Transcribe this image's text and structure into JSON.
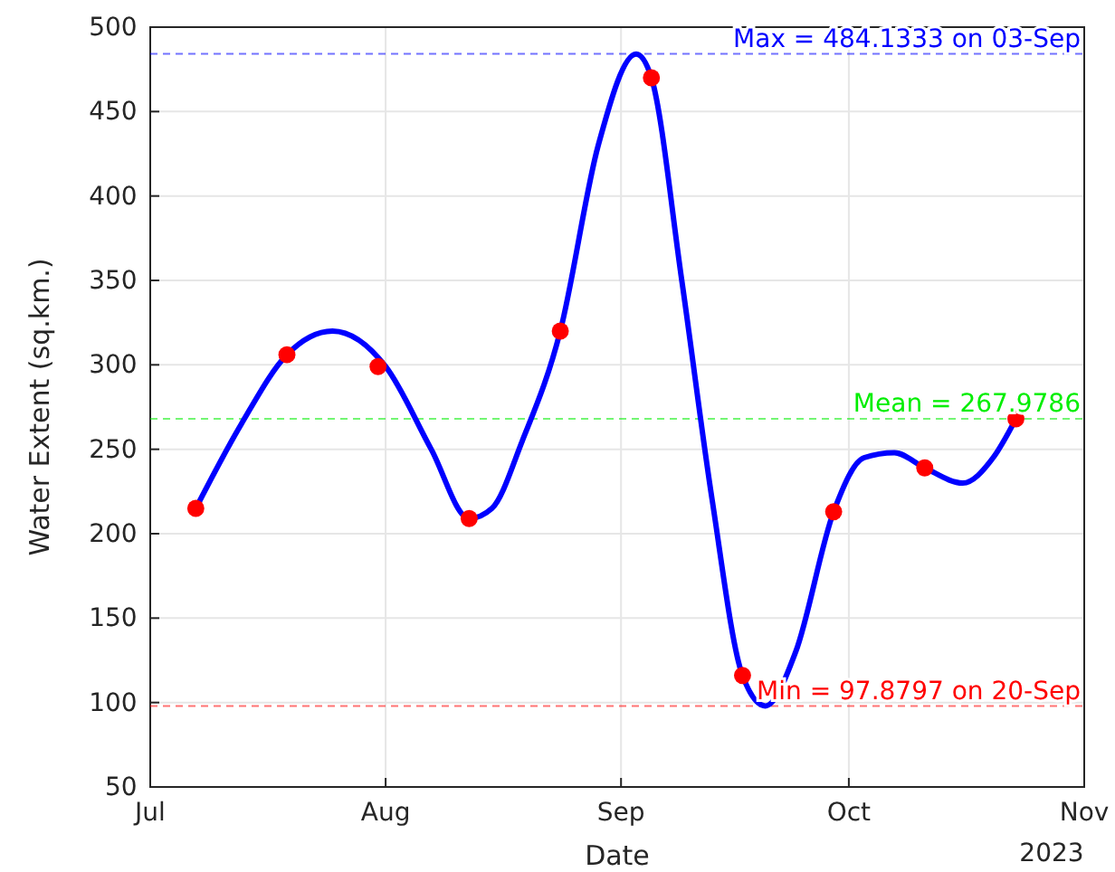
{
  "chart_data": {
    "type": "line",
    "xlabel": "Date",
    "ylabel": "Water Extent (sq.km.)",
    "xlim": [
      "2023-07-01",
      "2023-11-01"
    ],
    "xticks": [
      {
        "value": "2023-07-01",
        "label": "Jul"
      },
      {
        "value": "2023-08-01",
        "label": "Aug"
      },
      {
        "value": "2023-09-01",
        "label": "Sep"
      },
      {
        "value": "2023-10-01",
        "label": "Oct"
      },
      {
        "value": "2023-11-01",
        "label": "Nov"
      }
    ],
    "ylim": [
      50,
      500
    ],
    "yticks": [
      50,
      100,
      150,
      200,
      250,
      300,
      350,
      400,
      450,
      500
    ],
    "grid": true,
    "series": [
      {
        "color": "#0000ff",
        "marker": "none",
        "line_style": "solid",
        "x": [
          "2023-07-07",
          "2023-07-13",
          "2023-07-19",
          "2023-07-25",
          "2023-08-01",
          "2023-08-07",
          "2023-08-12",
          "2023-08-15",
          "2023-08-19",
          "2023-08-24",
          "2023-08-29",
          "2023-09-03",
          "2023-09-05",
          "2023-09-09",
          "2023-09-13",
          "2023-09-17",
          "2023-09-20",
          "2023-09-24",
          "2023-09-29",
          "2023-10-03",
          "2023-10-07",
          "2023-10-11",
          "2023-10-16",
          "2023-10-20",
          "2023-10-23"
        ],
        "values": [
          215,
          265,
          306,
          320,
          299,
          250,
          209,
          215,
          255,
          320,
          430,
          484,
          470,
          350,
          220,
          116,
          98,
          130,
          213,
          245,
          248,
          239,
          230,
          245,
          268
        ]
      },
      {
        "type": "scatter",
        "color": "#ff0000",
        "marker": "circle",
        "x": [
          "2023-07-07",
          "2023-07-19",
          "2023-07-31",
          "2023-08-12",
          "2023-08-24",
          "2023-09-05",
          "2023-09-17",
          "2023-09-29",
          "2023-10-11",
          "2023-10-23"
        ],
        "values": [
          215,
          306,
          299,
          209,
          320,
          470,
          116,
          213,
          239,
          268
        ]
      }
    ],
    "ref_lines": [
      {
        "axis": "y",
        "value": 484.1333,
        "label": "Max = 484.1333 on 03-Sep",
        "color": "#0000ff",
        "line_style": "dashed"
      },
      {
        "axis": "y",
        "value": 267.9786,
        "label": "Mean = 267.9786",
        "color": "#00ee00",
        "line_style": "dashed"
      },
      {
        "axis": "y",
        "value": 97.8797,
        "label": "Min = 97.8797 on 20-Sep",
        "color": "#ff0000",
        "line_style": "dashed"
      }
    ],
    "annotations": [
      "2023"
    ]
  }
}
